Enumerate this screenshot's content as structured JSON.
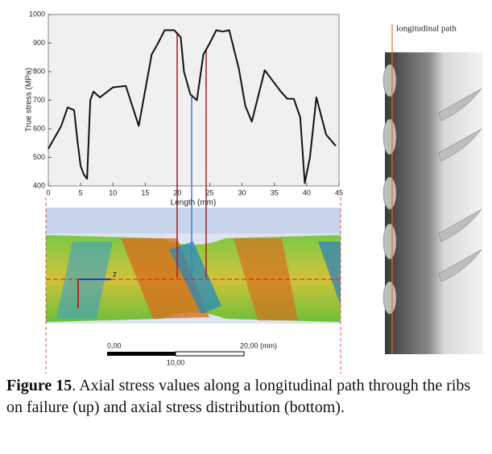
{
  "chart_data": {
    "type": "line",
    "y_label": "True stress (MPa)",
    "x_label": "Length (mm)",
    "x": [
      0,
      2,
      3,
      4,
      4.5,
      5,
      5.5,
      6,
      6.5,
      7,
      8,
      10,
      12,
      14,
      16,
      17,
      18,
      19.5,
      20.5,
      21,
      22,
      23,
      24,
      25,
      26,
      27,
      28,
      29.5,
      30.5,
      31.5,
      33.5,
      35,
      36,
      37,
      38,
      39,
      39.7,
      40.5,
      41.5,
      43,
      44.5
    ],
    "values": [
      530,
      610,
      675,
      665,
      560,
      470,
      440,
      425,
      700,
      730,
      710,
      745,
      750,
      610,
      860,
      900,
      945,
      945,
      920,
      800,
      720,
      700,
      860,
      900,
      945,
      940,
      945,
      810,
      680,
      625,
      805,
      760,
      730,
      705,
      705,
      640,
      410,
      500,
      710,
      580,
      540
    ],
    "color": "#111111",
    "xlim": [
      0,
      45
    ],
    "xticks": [
      0,
      5,
      10,
      15,
      20,
      25,
      30,
      35,
      40,
      45
    ],
    "ylim": [
      400,
      1000
    ],
    "yticks": [
      400,
      500,
      600,
      700,
      800,
      900,
      1000
    ],
    "grid": false
  },
  "fe_model": {
    "axis_marker": "z",
    "scale_bar": {
      "start": "0,00",
      "middle": "10,00",
      "end": "20,00 (mm)"
    }
  },
  "rebar": {
    "path_label": "longitudinal  path"
  },
  "caption": {
    "label": "Figure 15",
    "text": ". Axial stress values along a longitudinal path through the ribs on failure (up) and axial stress distribution (bottom)."
  }
}
